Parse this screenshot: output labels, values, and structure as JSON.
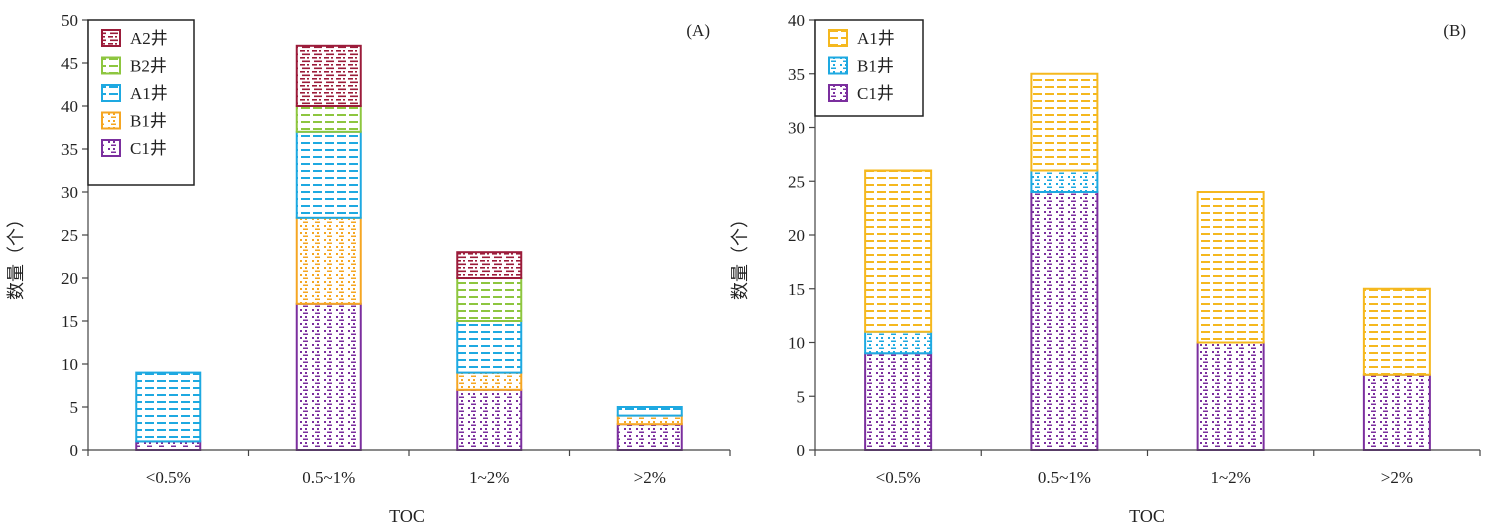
{
  "colors": {
    "A2井": "#9b1c3a",
    "B2井": "#8dc63f",
    "A1井_A": "#1ea9e1",
    "A1井_B": "#f5b81e",
    "B1井_A": "#f5a623",
    "B1井_B": "#1ea9e1",
    "C1井": "#7b2f9e"
  },
  "chart_data": [
    {
      "type": "bar",
      "stacked": true,
      "panel_label": "(A)",
      "categories": [
        "<0.5%",
        "0.5~1%",
        "1~2%",
        ">2%"
      ],
      "xlabel": "TOC",
      "ylabel": "数量（个）",
      "ylim": [
        0,
        50
      ],
      "yticks": [
        0,
        5,
        10,
        15,
        20,
        25,
        30,
        35,
        40,
        45,
        50
      ],
      "grid": false,
      "legend_position": "top-left",
      "legend_order": [
        "A2井",
        "B2井",
        "A1井",
        "B1井",
        "C1井"
      ],
      "series": [
        {
          "name": "C1井",
          "color_key": "C1井",
          "pattern": "dots",
          "values": [
            1,
            17,
            7,
            3
          ]
        },
        {
          "name": "B1井",
          "color_key": "B1井_A",
          "pattern": "dots",
          "values": [
            0,
            10,
            2,
            1
          ]
        },
        {
          "name": "A1井",
          "color_key": "A1井_A",
          "pattern": "dashes",
          "values": [
            8,
            10,
            6,
            1
          ]
        },
        {
          "name": "B2井",
          "color_key": "B2井",
          "pattern": "dashes",
          "values": [
            0,
            3,
            5,
            0
          ]
        },
        {
          "name": "A2井",
          "color_key": "A2井",
          "pattern": "dashdot",
          "values": [
            0,
            7,
            3,
            0
          ]
        }
      ]
    },
    {
      "type": "bar",
      "stacked": true,
      "panel_label": "(B)",
      "categories": [
        "<0.5%",
        "0.5~1%",
        "1~2%",
        ">2%"
      ],
      "xlabel": "TOC",
      "ylabel": "数量（个）",
      "ylim": [
        0,
        40
      ],
      "yticks": [
        0,
        5,
        10,
        15,
        20,
        25,
        30,
        35,
        40
      ],
      "grid": false,
      "legend_position": "top-left",
      "legend_order": [
        "A1井",
        "B1井",
        "C1井"
      ],
      "series": [
        {
          "name": "C1井",
          "color_key": "C1井",
          "pattern": "dots",
          "values": [
            9,
            24,
            10,
            7
          ]
        },
        {
          "name": "B1井",
          "color_key": "B1井_B",
          "pattern": "dots",
          "values": [
            2,
            2,
            0,
            0
          ]
        },
        {
          "name": "A1井",
          "color_key": "A1井_B",
          "pattern": "dashes",
          "values": [
            15,
            9,
            14,
            8
          ]
        }
      ]
    }
  ]
}
